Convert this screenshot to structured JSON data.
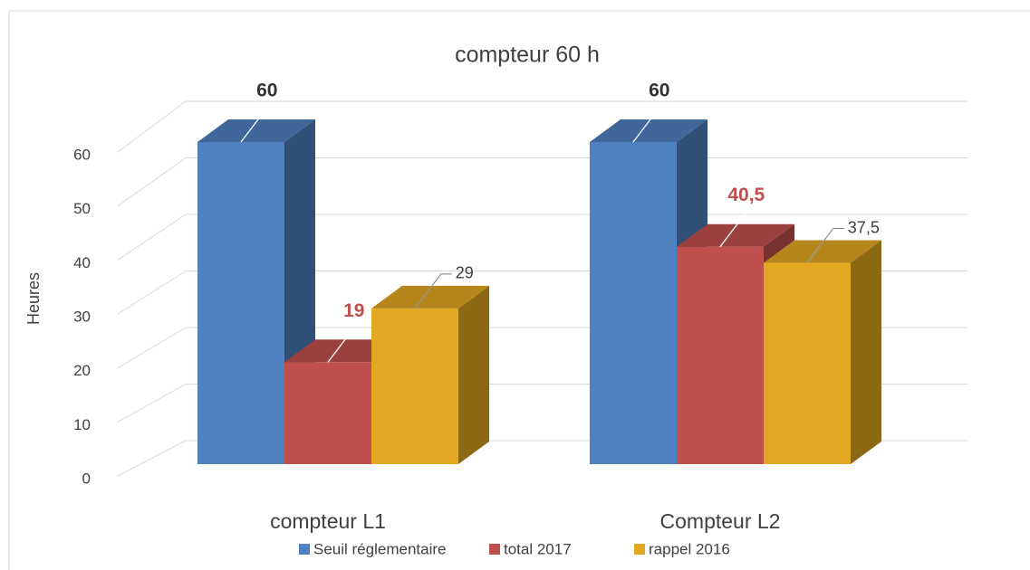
{
  "chart_data": {
    "type": "bar3d",
    "title": "compteur 60 h",
    "y_label": "Heures",
    "categories": [
      "compteur L1",
      "Compteur L2"
    ],
    "series": [
      {
        "name": "Seuil réglementaire",
        "color": "#4f81c1",
        "values": [
          60,
          60
        ],
        "value_labels": [
          "60",
          "60"
        ]
      },
      {
        "name": "total 2017",
        "color": "#c0504d",
        "values": [
          19,
          40.5
        ],
        "value_labels": [
          "19",
          "40,5"
        ]
      },
      {
        "name": "rappel 2016",
        "color": "#e2a822",
        "values": [
          29,
          37.5
        ],
        "value_labels": [
          "29",
          "37,5"
        ]
      }
    ],
    "ylim": [
      0,
      60
    ],
    "yticks": [
      0,
      10,
      20,
      30,
      40,
      50,
      60
    ],
    "grid": true,
    "legend": "bottom"
  }
}
